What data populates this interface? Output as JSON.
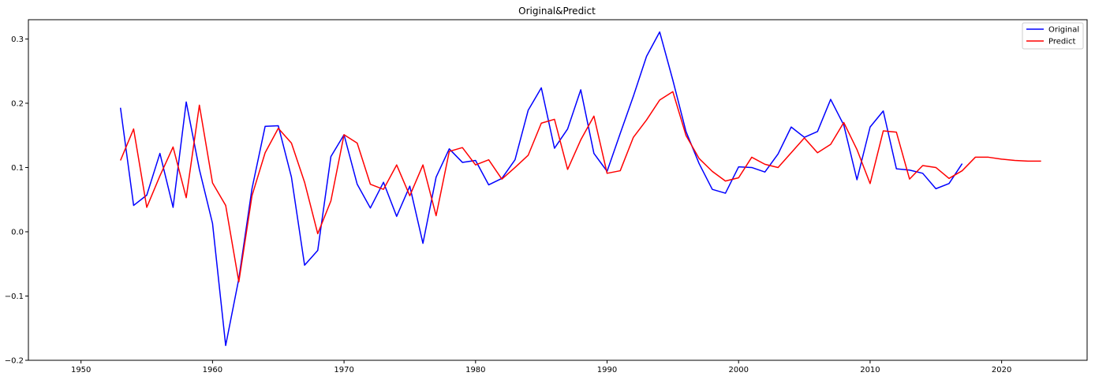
{
  "chart_data": {
    "type": "line",
    "title": "Original&Predict",
    "xlabel": "",
    "ylabel": "",
    "xlim": [
      1946,
      2026.5
    ],
    "ylim": [
      -0.2,
      0.33
    ],
    "xticks": [
      1950,
      1960,
      1970,
      1980,
      1990,
      2000,
      2010,
      2020
    ],
    "yticks": [
      -0.2,
      -0.1,
      0.0,
      0.1,
      0.2,
      0.3
    ],
    "xtick_labels": [
      "1950",
      "1960",
      "1970",
      "1980",
      "1990",
      "2000",
      "2010",
      "2020"
    ],
    "ytick_labels": [
      "−0.2",
      "−0.1",
      "0.0",
      "0.1",
      "0.2",
      "0.3"
    ],
    "grid": false,
    "legend_position": "top-right",
    "series": [
      {
        "name": "Original",
        "color": "#0000ff",
        "x": [
          1953,
          1954,
          1955,
          1956,
          1957,
          1958,
          1959,
          1960,
          1961,
          1962,
          1963,
          1964,
          1965,
          1966,
          1967,
          1968,
          1969,
          1970,
          1971,
          1972,
          1973,
          1974,
          1975,
          1976,
          1977,
          1978,
          1979,
          1980,
          1981,
          1982,
          1983,
          1984,
          1985,
          1986,
          1987,
          1988,
          1989,
          1990,
          1991,
          1992,
          1993,
          1994,
          1995,
          1996,
          1997,
          1998,
          1999,
          2000,
          2001,
          2002,
          2003,
          2004,
          2005,
          2006,
          2007,
          2008,
          2009,
          2010,
          2011,
          2012,
          2013,
          2014,
          2015,
          2016,
          2017
        ],
        "values": [
          0.193,
          0.041,
          0.057,
          0.122,
          0.038,
          0.202,
          0.097,
          0.013,
          -0.177,
          -0.073,
          0.067,
          0.164,
          0.165,
          0.085,
          -0.052,
          -0.029,
          0.117,
          0.151,
          0.074,
          0.037,
          0.077,
          0.024,
          0.071,
          -0.018,
          0.085,
          0.129,
          0.108,
          0.111,
          0.073,
          0.083,
          0.112,
          0.189,
          0.224,
          0.13,
          0.16,
          0.221,
          0.122,
          0.094,
          0.153,
          0.211,
          0.273,
          0.311,
          0.236,
          0.156,
          0.106,
          0.066,
          0.06,
          0.101,
          0.1,
          0.093,
          0.121,
          0.163,
          0.147,
          0.156,
          0.206,
          0.166,
          0.081,
          0.163,
          0.188,
          0.098,
          0.096,
          0.091,
          0.067,
          0.075,
          0.106
        ]
      },
      {
        "name": "Predict",
        "color": "#ff0000",
        "x": [
          1953,
          1954,
          1955,
          1956,
          1957,
          1958,
          1959,
          1960,
          1961,
          1962,
          1963,
          1964,
          1965,
          1966,
          1967,
          1968,
          1969,
          1970,
          1971,
          1972,
          1973,
          1974,
          1975,
          1976,
          1977,
          1978,
          1979,
          1980,
          1981,
          1982,
          1983,
          1984,
          1985,
          1986,
          1987,
          1988,
          1989,
          1990,
          1991,
          1992,
          1993,
          1994,
          1995,
          1996,
          1997,
          1998,
          1999,
          2000,
          2001,
          2002,
          2003,
          2004,
          2005,
          2006,
          2007,
          2008,
          2009,
          2010,
          2011,
          2012,
          2013,
          2014,
          2015,
          2016,
          2017,
          2018,
          2019,
          2020,
          2021,
          2022,
          2023
        ],
        "values": [
          0.111,
          0.16,
          0.038,
          0.087,
          0.132,
          0.053,
          0.197,
          0.076,
          0.041,
          -0.078,
          0.056,
          0.123,
          0.161,
          0.138,
          0.077,
          -0.003,
          0.048,
          0.151,
          0.138,
          0.074,
          0.066,
          0.104,
          0.056,
          0.104,
          0.025,
          0.125,
          0.131,
          0.104,
          0.112,
          0.082,
          0.1,
          0.119,
          0.169,
          0.175,
          0.097,
          0.143,
          0.18,
          0.091,
          0.095,
          0.147,
          0.174,
          0.205,
          0.218,
          0.15,
          0.114,
          0.094,
          0.079,
          0.084,
          0.116,
          0.105,
          0.1,
          0.123,
          0.146,
          0.123,
          0.136,
          0.17,
          0.128,
          0.075,
          0.157,
          0.155,
          0.082,
          0.103,
          0.1,
          0.083,
          0.095,
          0.116,
          0.116,
          0.113,
          0.111,
          0.11,
          0.11
        ]
      }
    ]
  }
}
